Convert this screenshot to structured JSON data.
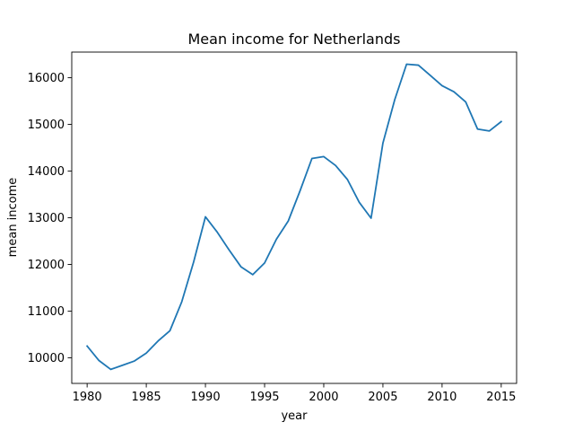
{
  "chart_data": {
    "type": "line",
    "title": "Mean income for Netherlands",
    "xlabel": "year",
    "ylabel": "mean income",
    "xlim": [
      1978.7,
      2016.3
    ],
    "ylim": [
      9450,
      16550
    ],
    "xticks": [
      1980,
      1985,
      1990,
      1995,
      2000,
      2005,
      2010,
      2015
    ],
    "yticks": [
      10000,
      11000,
      12000,
      13000,
      14000,
      15000,
      16000
    ],
    "grid": false,
    "line_color": "#1f77b4",
    "series": [
      {
        "x": [
          1980,
          1981,
          1982,
          1983,
          1984,
          1985,
          1986,
          1987,
          1988,
          1989,
          1990,
          1991,
          1992,
          1993,
          1994,
          1995,
          1996,
          1997,
          1998,
          1999,
          2000,
          2001,
          2002,
          2003,
          2004,
          2005,
          2006,
          2007,
          2008,
          2009,
          2010,
          2011,
          2012,
          2013,
          2014,
          2015
        ],
        "y": [
          10250,
          9940,
          9750,
          9840,
          9930,
          10100,
          10360,
          10580,
          11200,
          12050,
          13020,
          12690,
          12310,
          11950,
          11780,
          12030,
          12540,
          12930,
          13580,
          14270,
          14310,
          14120,
          13820,
          13330,
          12990,
          14600,
          15530,
          16290,
          16270,
          16050,
          15830,
          15700,
          15480,
          14900,
          14860,
          15060
        ]
      }
    ]
  }
}
